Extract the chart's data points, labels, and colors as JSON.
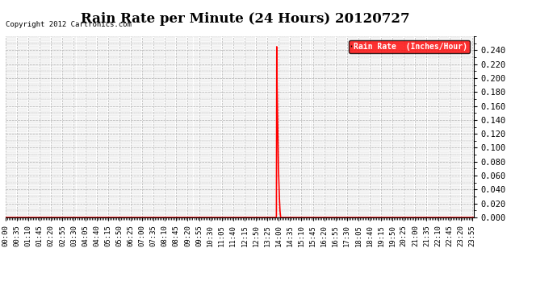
{
  "title": "Rain Rate per Minute (24 Hours) 20120727",
  "copyright": "Copyright 2012 Cartronics.com",
  "legend_label": "Rain Rate  (Inches/Hour)",
  "line_color": "#ff0000",
  "background_color": "#ffffff",
  "grid_color": "#b0b0b0",
  "ylim": [
    0.0,
    0.26
  ],
  "yticks": [
    0.0,
    0.02,
    0.04,
    0.06,
    0.08,
    0.1,
    0.12,
    0.14,
    0.16,
    0.18,
    0.2,
    0.22,
    0.24
  ],
  "xlabel_fontsize": 6.5,
  "title_fontsize": 12,
  "tick_fontsize": 7.5,
  "spike_data": [
    [
      833,
      0.0
    ],
    [
      834,
      0.245
    ],
    [
      835,
      0.19
    ],
    [
      836,
      0.16
    ],
    [
      837,
      0.13
    ],
    [
      838,
      0.1
    ],
    [
      839,
      0.075
    ],
    [
      840,
      0.06
    ],
    [
      841,
      0.045
    ],
    [
      842,
      0.03
    ],
    [
      843,
      0.02
    ],
    [
      844,
      0.01
    ],
    [
      845,
      0.005
    ],
    [
      846,
      0.0
    ]
  ],
  "xtick_labels": [
    "00:00",
    "00:35",
    "01:10",
    "01:45",
    "02:20",
    "02:55",
    "03:30",
    "04:05",
    "04:40",
    "05:15",
    "05:50",
    "06:25",
    "07:00",
    "07:35",
    "08:10",
    "08:45",
    "09:20",
    "09:55",
    "10:30",
    "11:05",
    "11:40",
    "12:15",
    "12:50",
    "13:25",
    "14:00",
    "14:35",
    "15:10",
    "15:45",
    "16:20",
    "16:55",
    "17:30",
    "18:05",
    "18:40",
    "19:15",
    "19:50",
    "20:25",
    "21:00",
    "21:35",
    "22:10",
    "22:45",
    "23:20",
    "23:55"
  ],
  "xtick_positions_minutes": [
    0,
    35,
    70,
    105,
    140,
    175,
    210,
    245,
    280,
    315,
    350,
    385,
    420,
    455,
    490,
    525,
    560,
    595,
    630,
    665,
    700,
    735,
    770,
    805,
    840,
    875,
    910,
    945,
    980,
    1015,
    1050,
    1085,
    1120,
    1155,
    1190,
    1225,
    1260,
    1295,
    1330,
    1365,
    1400,
    1435
  ],
  "total_minutes": 1440
}
